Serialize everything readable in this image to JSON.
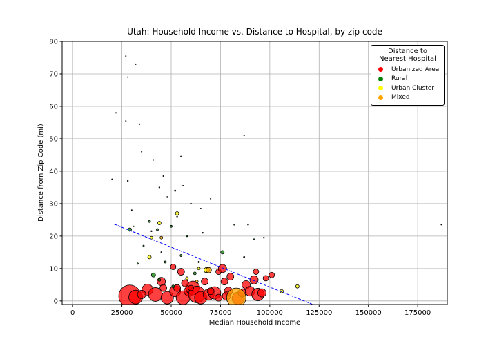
{
  "chart_data": {
    "type": "scatter",
    "title": "Utah: Household Income vs. Distance to Hospital, by zip code",
    "x_label": "Median Household Income",
    "y_label": "Distance from Zip Code (mi)",
    "legend_title": "Distance to Nearest Hospital",
    "legend_position": "upper right",
    "grid": true,
    "xlim": [
      -5300,
      190000
    ],
    "ylim": [
      -1.1,
      80
    ],
    "xticks": [
      0,
      25000,
      50000,
      75000,
      100000,
      125000,
      150000,
      175000
    ],
    "yticks": [
      0,
      10,
      20,
      30,
      40,
      50,
      60,
      70,
      80
    ],
    "series": [
      {
        "name": "Urbanized Area",
        "color": "#ff0000",
        "x": [
          29000,
          32000,
          38000,
          42000,
          45000,
          48000,
          51000,
          52000,
          55000,
          56000,
          59000,
          61000,
          63000,
          65000,
          67000,
          69000,
          72000,
          74000,
          76000,
          77000,
          79000,
          80000,
          84000,
          86000,
          88000,
          90000,
          92000,
          93000,
          94000,
          96000,
          98000,
          101000,
          57000,
          60000,
          35000,
          46000,
          53000,
          70000,
          74000,
          78000
        ],
        "values": [
          1.5,
          1.2,
          3.5,
          2,
          6,
          1,
          10.5,
          3,
          9,
          1,
          3,
          4,
          2,
          1,
          6,
          2,
          2.5,
          9,
          10,
          6,
          3,
          7.5,
          0.8,
          2.5,
          5,
          3,
          6.5,
          9,
          2,
          2.5,
          7,
          8,
          5.5,
          4,
          2,
          4,
          4,
          3,
          1,
          1.5
        ],
        "sizes": [
          16,
          10,
          8,
          10,
          6,
          9,
          4,
          8,
          5,
          10,
          7,
          10,
          12,
          9,
          5,
          8,
          9,
          4,
          6,
          5,
          6,
          5,
          9,
          6,
          6,
          7,
          6,
          4,
          9,
          6,
          4,
          4,
          5,
          4,
          6,
          5,
          5,
          5,
          5,
          6
        ]
      },
      {
        "name": "Rural",
        "color": "#008000",
        "x": [
          39000,
          41000,
          44000,
          50000,
          62000,
          76000,
          51000,
          47000,
          55000,
          43000,
          52000,
          36000,
          58000,
          28000,
          32000,
          27000,
          22000,
          27000,
          34000,
          20000,
          35000,
          41000,
          55000,
          46000,
          28000,
          48000,
          60000,
          65000,
          70000,
          187000,
          87000,
          89000,
          82000,
          97000,
          92000,
          66000,
          44000,
          56000,
          40000,
          53000,
          45000,
          30000,
          31000,
          87000,
          33000,
          64000,
          29000
        ],
        "values": [
          24.5,
          8,
          6.5,
          23,
          8.5,
          15,
          4.5,
          12,
          14,
          22,
          34,
          17,
          20,
          37,
          73,
          75.5,
          58,
          55.5,
          54.5,
          37.5,
          46,
          43.5,
          44.5,
          38.5,
          69,
          32,
          30,
          28.5,
          31.5,
          23.5,
          51,
          23.5,
          23.5,
          19.5,
          19,
          21,
          35,
          35.5,
          21.5,
          26,
          15,
          28,
          23,
          13.5,
          11.5,
          12,
          22
        ],
        "sizes": [
          1.5,
          3,
          2,
          1.5,
          2,
          2.5,
          2,
          1.5,
          1.5,
          1.5,
          1,
          1,
          1,
          0.8,
          0.6,
          0.6,
          0.6,
          0.6,
          0.6,
          0.6,
          0.6,
          0.6,
          0.8,
          0.6,
          0.6,
          0.8,
          0.8,
          0.6,
          0.6,
          0.6,
          0.6,
          0.8,
          0.8,
          0.8,
          0.8,
          0.8,
          0.8,
          0.6,
          0.8,
          0.8,
          0.8,
          0.6,
          0.6,
          1,
          1,
          1,
          2.5
        ]
      },
      {
        "name": "Urban Cluster",
        "color": "#ffff00",
        "x": [
          39000,
          44000,
          53000,
          68000,
          114000,
          106000,
          40000,
          58000,
          64000
        ],
        "values": [
          13.5,
          24,
          27,
          9.5,
          4.5,
          3,
          19.5,
          7,
          10
        ],
        "sizes": [
          2.5,
          2.5,
          2.5,
          4,
          2.5,
          2.5,
          2,
          2,
          2
        ]
      },
      {
        "name": "Mixed",
        "color": "#ffa500",
        "x": [
          83000,
          69000,
          45000,
          63000
        ],
        "values": [
          1,
          9.5,
          19.5,
          6
        ],
        "sizes": [
          14,
          4,
          2,
          2
        ]
      }
    ],
    "trend_line": {
      "color": "#0000ff",
      "x": [
        21000,
        121500
      ],
      "values": [
        23.7,
        -1
      ]
    }
  }
}
